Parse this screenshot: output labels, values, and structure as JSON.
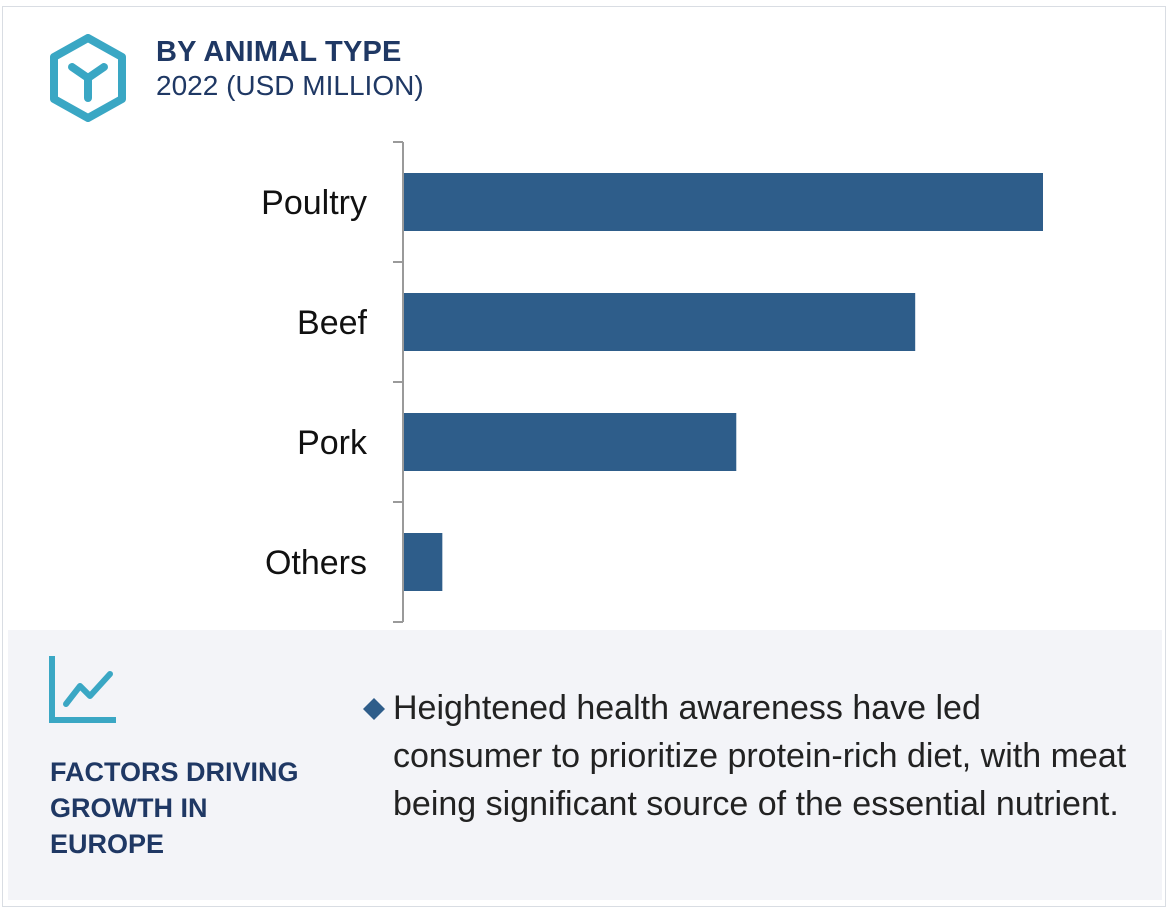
{
  "header": {
    "icon": "hexagon-y-icon",
    "title": "BY ANIMAL TYPE",
    "subtitle": "2022 (USD MILLION)"
  },
  "colors": {
    "bar": "#2e5d8a",
    "title": "#1f3864",
    "icon": "#3aa7c4",
    "axis": "#9a9a9a",
    "panel_bg": "#f3f4f8"
  },
  "chart_data": {
    "type": "bar",
    "orientation": "horizontal",
    "categories": [
      "Poultry",
      "Beef",
      "Pork",
      "Others"
    ],
    "values": [
      100,
      80,
      52,
      6
    ],
    "xlim": [
      0,
      100
    ],
    "title": "BY ANIMAL TYPE",
    "subtitle": "2022 (USD MILLION)",
    "xlabel": "",
    "ylabel": "",
    "grid": false,
    "legend": "none"
  },
  "factors": {
    "icon": "trend-chart-icon",
    "title_lines": [
      "FACTORS DRIVING",
      "GROWTH IN",
      "EUROPE"
    ],
    "bullet_icon": "diamond-icon",
    "bullet": "Heightened health awareness have led consumer to prioritize protein-rich diet, with meat being significant source of the essential nutrient."
  }
}
